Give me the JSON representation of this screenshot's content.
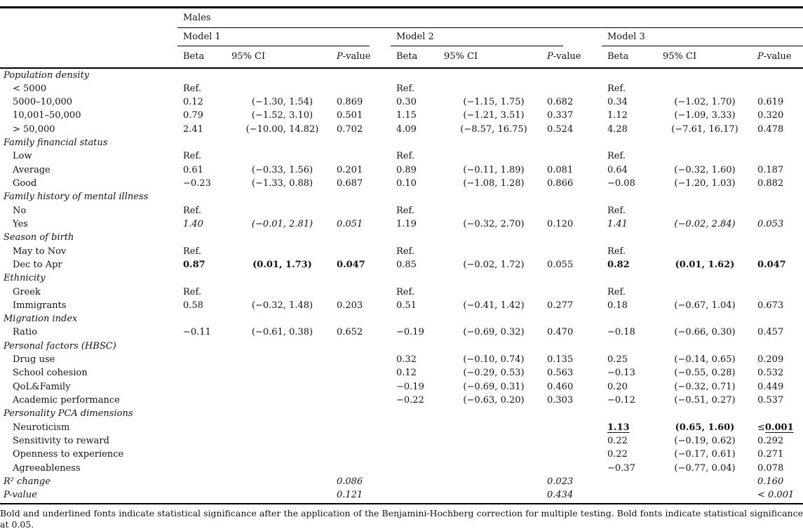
{
  "table": {
    "group_header": "Males",
    "models": [
      "Model 1",
      "Model 2",
      "Model 3"
    ],
    "columns": [
      "Beta",
      "95% CI",
      "P-value"
    ],
    "rows": [
      {
        "label": "Population density",
        "kind": "section"
      },
      {
        "label": "< 5000",
        "kind": "item",
        "c": [
          "Ref.",
          "",
          "",
          "Ref.",
          "",
          "",
          "Ref.",
          "",
          ""
        ]
      },
      {
        "label": "5000–10,000",
        "kind": "item",
        "c": [
          "0.12",
          "(−1.30, 1.54)",
          "0.869",
          "0.30",
          "(−1.15, 1.75)",
          "0.682",
          "0.34",
          "(−1.02, 1.70)",
          "0.619"
        ]
      },
      {
        "label": "10,001–50,000",
        "kind": "item",
        "c": [
          "0.79",
          "(−1.52, 3.10)",
          "0.501",
          "1.15",
          "(−1.21, 3.51)",
          "0.337",
          "1.12",
          "(−1.09, 3.33)",
          "0.320"
        ]
      },
      {
        "label": "> 50,000",
        "kind": "item",
        "c": [
          "2.41",
          "(−10.00, 14.82)",
          "0.702",
          "4.09",
          "(−8.57, 16.75)",
          "0.524",
          "4.28",
          "(−7.61, 16.17)",
          "0.478"
        ]
      },
      {
        "label": "Family financial status",
        "kind": "section"
      },
      {
        "label": "Low",
        "kind": "item",
        "c": [
          "Ref.",
          "",
          "",
          "Ref.",
          "",
          "",
          "Ref.",
          "",
          ""
        ]
      },
      {
        "label": "Average",
        "kind": "item",
        "c": [
          "0.61",
          "(−0.33, 1.56)",
          "0.201",
          "0.89",
          "(−0.11, 1.89)",
          "0.081",
          "0.64",
          "(−0.32, 1.60)",
          "0.187"
        ]
      },
      {
        "label": "Good",
        "kind": "item",
        "c": [
          "−0.23",
          "(−1.33, 0.88)",
          "0.687",
          "0.10",
          "(−1.08, 1.28)",
          "0.866",
          "−0.08",
          "(−1.20, 1.03)",
          "0.882"
        ]
      },
      {
        "label": "Family history of mental illness",
        "kind": "section"
      },
      {
        "label": "No",
        "kind": "item",
        "c": [
          "Ref.",
          "",
          "",
          "Ref.",
          "",
          "",
          "Ref.",
          "",
          ""
        ]
      },
      {
        "label": "Yes",
        "kind": "item",
        "c": [
          {
            "t": "1.40",
            "s": "i"
          },
          {
            "t": "(−0.01, 2.81)",
            "s": "i"
          },
          {
            "t": "0.051",
            "s": "i"
          },
          "1.19",
          "(−0.32, 2.70)",
          "0.120",
          {
            "t": "1.41",
            "s": "i"
          },
          {
            "t": "(−0.02, 2.84)",
            "s": "i"
          },
          {
            "t": "0.053",
            "s": "i"
          }
        ]
      },
      {
        "label": "Season of birth",
        "kind": "section"
      },
      {
        "label": "May to Nov",
        "kind": "item",
        "c": [
          "Ref.",
          "",
          "",
          "Ref.",
          "",
          "",
          "Ref.",
          "",
          ""
        ]
      },
      {
        "label": "Dec to Apr",
        "kind": "item",
        "c": [
          {
            "t": "0.87",
            "s": "b"
          },
          {
            "t": "(0.01, 1.73)",
            "s": "b"
          },
          {
            "t": "0.047",
            "s": "b"
          },
          "0.85",
          "(−0.02, 1.72)",
          "0.055",
          {
            "t": "0.82",
            "s": "b"
          },
          {
            "t": "(0.01, 1.62)",
            "s": "b"
          },
          {
            "t": "0.047",
            "s": "b"
          }
        ]
      },
      {
        "label": "Ethnicity",
        "kind": "section"
      },
      {
        "label": "Greek",
        "kind": "item",
        "c": [
          "Ref.",
          "",
          "",
          "Ref.",
          "",
          "",
          "Ref.",
          "",
          ""
        ]
      },
      {
        "label": "Immigrants",
        "kind": "item",
        "c": [
          "0.58",
          "(−0.32, 1.48)",
          "0.203",
          "0.51",
          "(−0.41, 1.42)",
          "0.277",
          "0.18",
          "(−0.67, 1.04)",
          "0.673"
        ]
      },
      {
        "label": "Migration index",
        "kind": "section"
      },
      {
        "label": "Ratio",
        "kind": "item",
        "c": [
          "−0.11",
          "(−0.61, 0.38)",
          "0.652",
          "−0.19",
          "(−0.69, 0.32)",
          "0.470",
          "−0.18",
          "(−0.66, 0.30)",
          "0.457"
        ]
      },
      {
        "label": "Personal factors (HBSC)",
        "kind": "section"
      },
      {
        "label": "Drug use",
        "kind": "item",
        "c": [
          "",
          "",
          "",
          "0.32",
          "(−0.10, 0.74)",
          "0.135",
          "0.25",
          "(−0.14, 0.65)",
          "0.209"
        ]
      },
      {
        "label": "School cohesion",
        "kind": "item",
        "c": [
          "",
          "",
          "",
          "0.12",
          "(−0.29, 0.53)",
          "0.563",
          "−0.13",
          "(−0.55, 0.28)",
          "0.532"
        ]
      },
      {
        "label": "QoL&Family",
        "kind": "item",
        "c": [
          "",
          "",
          "",
          "−0.19",
          "(−0.69, 0.31)",
          "0.460",
          "0.20",
          "(−0.32, 0.71)",
          "0.449"
        ]
      },
      {
        "label": "Academic performance",
        "kind": "item",
        "c": [
          "",
          "",
          "",
          "−0.22",
          "(−0.63, 0.20)",
          "0.303",
          "−0.12",
          "(−0.51, 0.27)",
          "0.537"
        ]
      },
      {
        "label": "Personality PCA dimensions",
        "kind": "section"
      },
      {
        "label": "Neuroticism",
        "kind": "item",
        "c": [
          "",
          "",
          "",
          "",
          "",
          "",
          {
            "t": "1.13",
            "s": "bu"
          },
          {
            "t": "(0.65, 1.60)",
            "s": "b"
          },
          {
            "t": "0.001",
            "s": "bu",
            "pre": "≤"
          }
        ]
      },
      {
        "label": "Sensitivity to reward",
        "kind": "item",
        "c": [
          "",
          "",
          "",
          "",
          "",
          "",
          "0.22",
          "(−0.19, 0.62)",
          "0.292"
        ]
      },
      {
        "label": "Openness to experience",
        "kind": "item",
        "c": [
          "",
          "",
          "",
          "",
          "",
          "",
          "0.22",
          "(−0.17, 0.61)",
          "0.271"
        ]
      },
      {
        "label": "Agreeableness",
        "kind": "item",
        "c": [
          "",
          "",
          "",
          "",
          "",
          "",
          "−0.37",
          "(−0.77, 0.04)",
          "0.078"
        ]
      },
      {
        "label": "R² change",
        "kind": "stat",
        "c": [
          "",
          "",
          {
            "t": "0.086",
            "s": "i"
          },
          "",
          "",
          {
            "t": "0.023",
            "s": "i"
          },
          "",
          "",
          {
            "t": "0.160",
            "s": "i"
          }
        ]
      },
      {
        "label": "P-value",
        "kind": "stat",
        "c": [
          "",
          "",
          {
            "t": "0.121",
            "s": "i"
          },
          "",
          "",
          {
            "t": "0.434",
            "s": "i"
          },
          "",
          "",
          {
            "t": "< 0.001",
            "s": "i"
          }
        ]
      }
    ]
  },
  "footnote": "Bold and underlined fonts indicate statistical significance after the application of the Benjamini-Hochberg correction for multiple testing. Bold fonts indicate statistical significance at 0.05."
}
